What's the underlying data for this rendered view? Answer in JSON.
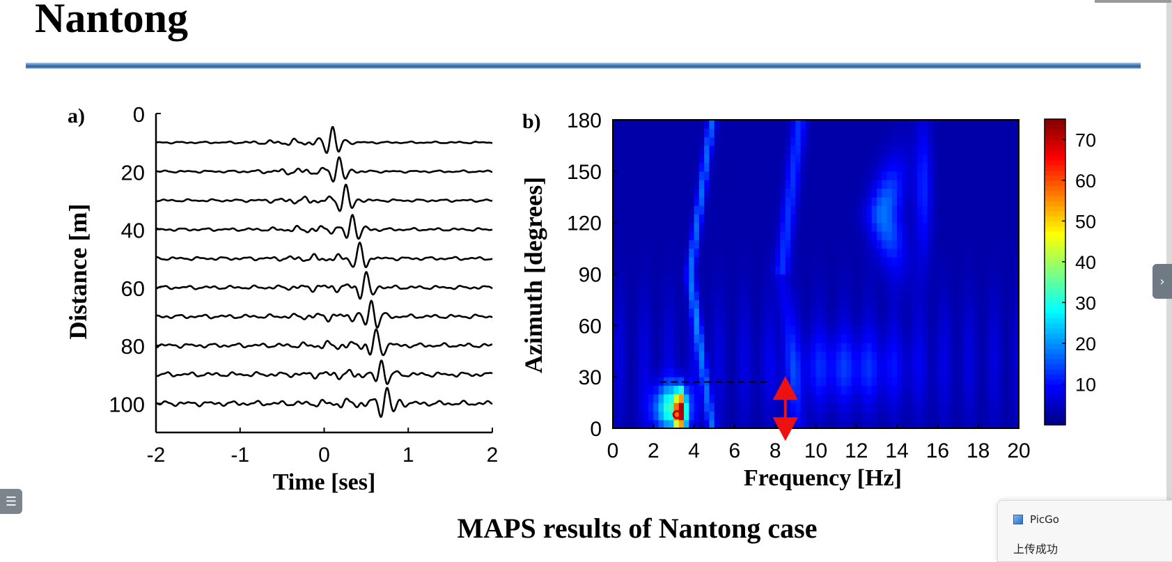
{
  "slide": {
    "title": "Nantong",
    "caption": "MAPS results of Nantong case"
  },
  "chart_data": [
    {
      "type": "line",
      "panel_label": "a)",
      "xlabel": "Time  [ses]",
      "ylabel": "Distance  [m]",
      "xlim": [
        -2,
        2
      ],
      "ylim": [
        0,
        110
      ],
      "y_inverted": true,
      "x_ticks": [
        "-2",
        "-1",
        "0",
        "1",
        "2"
      ],
      "y_ticks": [
        "0",
        "20",
        "40",
        "60",
        "80",
        "100"
      ],
      "y_tick_values": [
        0,
        20,
        40,
        60,
        80,
        100
      ],
      "trace_offsets": [
        10,
        20,
        30,
        40,
        50,
        60,
        70,
        80,
        90,
        100
      ],
      "peak_times": [
        0.1,
        0.18,
        0.26,
        0.34,
        0.42,
        0.5,
        0.56,
        0.62,
        0.68,
        0.75
      ],
      "line_color": "#000000",
      "grid": false
    },
    {
      "type": "heatmap",
      "panel_label": "b)",
      "xlabel": "Frequency  [Hz]",
      "ylabel": "Azimuth  [degrees]",
      "xlim": [
        0,
        20
      ],
      "ylim": [
        0,
        180
      ],
      "x_ticks": [
        "0",
        "2",
        "4",
        "6",
        "8",
        "10",
        "12",
        "14",
        "16",
        "18",
        "20"
      ],
      "y_ticks": [
        "0",
        "30",
        "60",
        "90",
        "120",
        "150",
        "180"
      ],
      "y_tick_values": [
        0,
        30,
        60,
        90,
        120,
        150,
        180
      ],
      "colorbar": {
        "range": [
          0,
          75
        ],
        "ticks": [
          "10",
          "20",
          "30",
          "40",
          "50",
          "60",
          "70"
        ],
        "tick_values": [
          10,
          20,
          30,
          40,
          50,
          60,
          70
        ],
        "colormap": "jet"
      },
      "peak": {
        "frequency": 3.3,
        "azimuth": 8,
        "value": 75
      },
      "dashed_line": {
        "azimuth": 27,
        "from_frequency": 2.3,
        "to_frequency": 7.6
      },
      "arrow": {
        "frequency": 8.5,
        "from_azimuth": 28,
        "to_azimuth": -5,
        "color": "#ee1111"
      },
      "grid": false
    }
  ],
  "overlay": {
    "side_handle_icon": "›",
    "menu_icon": "☰",
    "toast_app": "PicGo",
    "toast_message": "上传成功"
  }
}
